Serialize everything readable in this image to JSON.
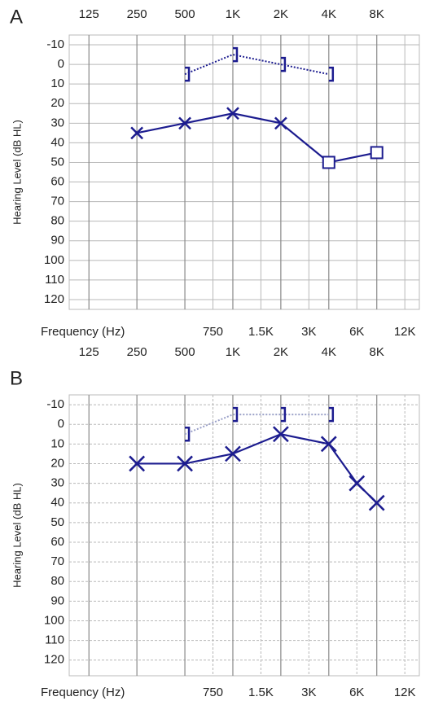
{
  "chart_data": [
    {
      "type": "audiogram",
      "panel_label": "A",
      "ylabel": "Hearing Level (dB HL)",
      "xlabel": "Frequency (Hz)",
      "xscale": "log",
      "xlim": [
        94,
        14800
      ],
      "ylim": [
        -15,
        125
      ],
      "y_inverted": true,
      "grid": true,
      "grid_style": "solid",
      "xticks_top": [
        125,
        250,
        500,
        {
          "value": 1000,
          "label": "1K"
        },
        {
          "value": 2000,
          "label": "2K"
        },
        {
          "value": 4000,
          "label": "4K"
        },
        {
          "value": 8000,
          "label": "8K"
        }
      ],
      "xticks_bottom": [
        750,
        {
          "value": 1500,
          "label": "1.5K"
        },
        {
          "value": 3000,
          "label": "3K"
        },
        {
          "value": 6000,
          "label": "6K"
        },
        {
          "value": 12000,
          "label": "12K"
        }
      ],
      "yticks": [
        -10,
        0,
        10,
        20,
        30,
        40,
        50,
        60,
        70,
        80,
        90,
        100,
        110,
        120
      ],
      "series": [
        {
          "color": "#1c1c8f",
          "line": "solid",
          "markers": [
            "x",
            "x",
            "x",
            "x",
            "square",
            "square"
          ],
          "x": [
            250,
            500,
            1000,
            2000,
            4000,
            8000
          ],
          "values": [
            35,
            30,
            25,
            30,
            50,
            45
          ]
        },
        {
          "color": "#1c1c8f",
          "line": "dotted",
          "markers": [
            "bracket",
            "bracket",
            "bracket",
            "bracket"
          ],
          "x": [
            500,
            1000,
            2000,
            4000
          ],
          "values": [
            5,
            -5,
            0,
            5
          ]
        }
      ]
    },
    {
      "type": "audiogram",
      "panel_label": "B",
      "ylabel": "Hearing Level (dB HL)",
      "xlabel": "Frequency (Hz)",
      "xscale": "log",
      "xlim": [
        94,
        14800
      ],
      "ylim": [
        -15,
        128
      ],
      "y_inverted": true,
      "grid": true,
      "grid_style": "dashed",
      "xticks_top": [
        125,
        250,
        500,
        {
          "value": 1000,
          "label": "1K"
        },
        {
          "value": 2000,
          "label": "2K"
        },
        {
          "value": 4000,
          "label": "4K"
        },
        {
          "value": 8000,
          "label": "8K"
        }
      ],
      "xticks_bottom": [
        750,
        {
          "value": 1500,
          "label": "1.5K"
        },
        {
          "value": 3000,
          "label": "3K"
        },
        {
          "value": 6000,
          "label": "6K"
        },
        {
          "value": 12000,
          "label": "12K"
        }
      ],
      "yticks": [
        -10,
        0,
        10,
        20,
        30,
        40,
        50,
        60,
        70,
        80,
        90,
        100,
        110,
        120
      ],
      "series": [
        {
          "color": "#1c1c8f",
          "line": "solid",
          "markers": [
            "x",
            "x",
            "x",
            "x",
            "x",
            "x",
            "x"
          ],
          "x": [
            250,
            500,
            1000,
            2000,
            4000,
            6000,
            8000
          ],
          "values": [
            20,
            20,
            15,
            5,
            10,
            30,
            40
          ]
        },
        {
          "color": "#9aa0c8",
          "line": "dotted",
          "markers": [
            "bracket",
            "bracket",
            "bracket",
            "bracket"
          ],
          "x": [
            500,
            1000,
            2000,
            4000
          ],
          "values": [
            5,
            -5,
            -5,
            -5
          ]
        }
      ]
    }
  ]
}
